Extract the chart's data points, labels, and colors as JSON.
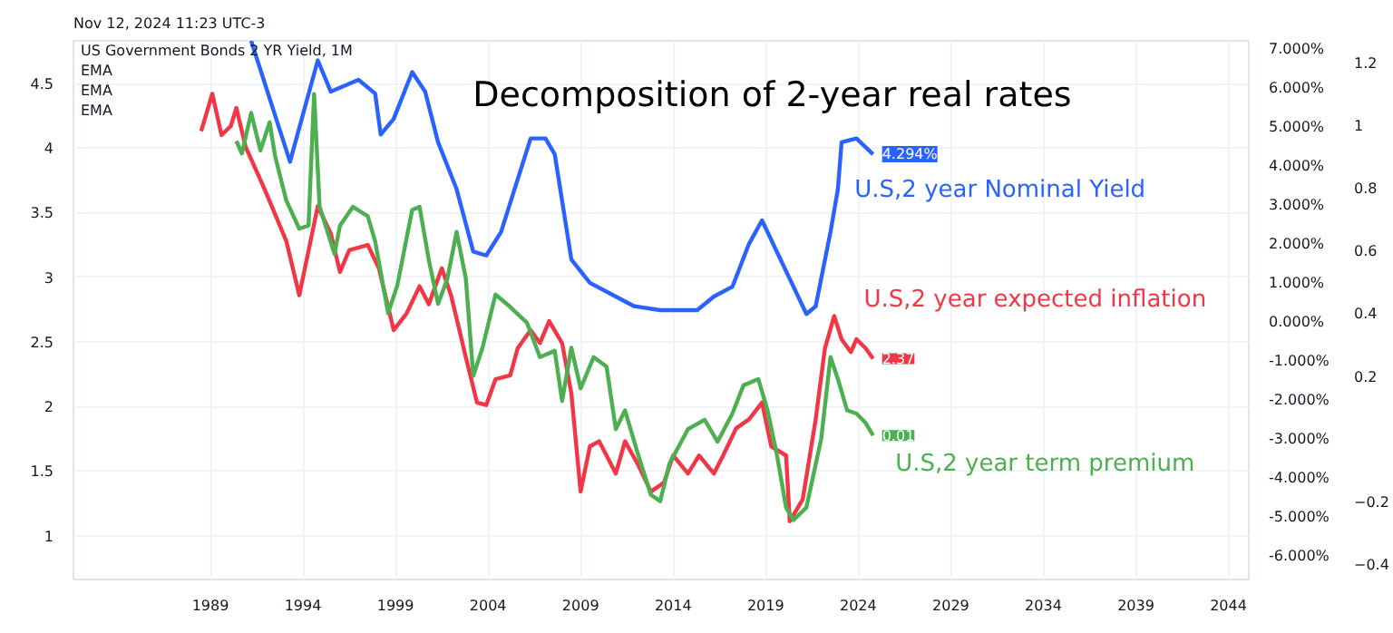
{
  "chart_data": {
    "type": "line",
    "title": "Decomposition of 2-year real rates",
    "annotations": [
      "Nov 12, 2024 11:23 UTC-3",
      "US Government Bonds 2 YR Yield, 1M",
      "EMA",
      "EMA",
      "EMA"
    ],
    "xlim": [
      1981.6,
      2045.1
    ],
    "xticks": [
      1989,
      1994,
      1999,
      2004,
      2009,
      2014,
      2019,
      2024,
      2029,
      2034,
      2039,
      2044
    ],
    "ylim": [
      0.66,
      4.83
    ],
    "yticks": [
      1,
      1.5,
      2,
      2.5,
      3,
      3.5,
      4,
      4.5
    ],
    "y2lim": [
      -6.6,
      7.2
    ],
    "y2ticks": [
      {
        "value": -6,
        "label": "-6.000%"
      },
      {
        "value": -5,
        "label": "-5.000%"
      },
      {
        "value": -4,
        "label": "-4.000%"
      },
      {
        "value": -3,
        "label": "-3.000%"
      },
      {
        "value": -2,
        "label": "-2.000%"
      },
      {
        "value": -1,
        "label": "-1.000%"
      },
      {
        "value": 0,
        "label": "0.000%"
      },
      {
        "value": 1,
        "label": "1.000%"
      },
      {
        "value": 2,
        "label": "2.000%"
      },
      {
        "value": 3,
        "label": "3.000%"
      },
      {
        "value": 4,
        "label": "4.000%"
      },
      {
        "value": 5,
        "label": "5.000%"
      },
      {
        "value": 6,
        "label": "6.000%"
      },
      {
        "value": 7,
        "label": "7.000%"
      }
    ],
    "y3lim": [
      -0.45,
      1.27
    ],
    "y3ticks": [
      -0.4,
      -0.2,
      0.2,
      0.4,
      0.6,
      0.8,
      1,
      1.2
    ],
    "grid": true,
    "legend": "right",
    "marker": "none",
    "line_style": "solid",
    "series": [
      {
        "name": "U.S,2 year Nominal Yield",
        "color": "#2962ff",
        "axis": "y2",
        "x": [
          1991.2,
          1993.3,
          1994.8,
          1995.5,
          1997.0,
          1997.9,
          1998.2,
          1998.9,
          1999.9,
          2000.6,
          2001.3,
          2002.3,
          2003.2,
          2003.9,
          2004.7,
          2005.3,
          2006.3,
          2007.1,
          2007.6,
          2008.5,
          2009.5,
          2010.9,
          2011.9,
          2013.3,
          2015.3,
          2016.2,
          2017.2,
          2018.1,
          2018.8,
          2019.6,
          2020.5,
          2021.2,
          2021.7,
          2022.5,
          2022.9,
          2023.1,
          2023.9,
          2024.8
        ],
        "values": [
          7.2,
          4.1,
          6.7,
          5.9,
          6.2,
          5.85,
          4.8,
          5.2,
          6.4,
          5.9,
          4.6,
          3.4,
          1.8,
          1.7,
          2.3,
          3.2,
          4.7,
          4.7,
          4.3,
          1.6,
          1.0,
          0.65,
          0.4,
          0.3,
          0.3,
          0.65,
          0.9,
          2.0,
          2.6,
          1.8,
          0.9,
          0.2,
          0.4,
          2.3,
          3.4,
          4.6,
          4.7,
          4.294
        ],
        "value_labels": [
          null,
          null,
          null,
          null,
          null,
          null,
          null,
          null,
          null,
          null,
          null,
          null,
          null,
          null,
          null,
          null,
          null,
          null,
          null,
          null,
          null,
          null,
          null,
          null,
          null,
          null,
          null,
          null,
          null,
          null,
          null,
          null,
          null,
          null,
          null,
          null,
          null,
          "4.294%"
        ]
      },
      {
        "name": "U.S,2 year expected inflation",
        "color": "#f23645",
        "axis": "y",
        "x": [
          1988.5,
          1989.1,
          1989.6,
          1990.1,
          1990.4,
          1990.9,
          1991.9,
          1993.1,
          1993.8,
          1994.8,
          1995.5,
          1996.0,
          1996.5,
          1997.5,
          1998.1,
          1998.9,
          1999.6,
          2000.3,
          2000.8,
          2001.5,
          2002.0,
          2002.8,
          2003.4,
          2003.9,
          2004.4,
          2005.2,
          2005.6,
          2006.3,
          2006.8,
          2007.3,
          2008.0,
          2008.5,
          2009.0,
          2009.5,
          2010.0,
          2010.4,
          2010.9,
          2011.4,
          2012.1,
          2012.8,
          2013.5,
          2014.0,
          2014.8,
          2015.4,
          2016.2,
          2016.7,
          2017.4,
          2018.1,
          2018.8,
          2019.3,
          2020.1,
          2020.3,
          2021.0,
          2021.7,
          2022.2,
          2022.7,
          2023.1,
          2023.6,
          2023.9,
          2024.4,
          2024.8
        ],
        "values": [
          4.13,
          4.42,
          4.1,
          4.17,
          4.31,
          4.01,
          3.69,
          3.28,
          2.86,
          3.55,
          3.34,
          3.04,
          3.21,
          3.25,
          3.07,
          2.59,
          2.72,
          2.93,
          2.79,
          3.07,
          2.86,
          2.38,
          2.03,
          2.01,
          2.21,
          2.24,
          2.45,
          2.59,
          2.49,
          2.66,
          2.49,
          2.1,
          1.34,
          1.69,
          1.73,
          1.62,
          1.48,
          1.73,
          1.55,
          1.34,
          1.41,
          1.62,
          1.48,
          1.62,
          1.48,
          1.62,
          1.83,
          1.9,
          2.03,
          1.69,
          1.62,
          1.11,
          1.28,
          1.9,
          2.45,
          2.7,
          2.52,
          2.42,
          2.52,
          2.45,
          2.37
        ],
        "value_labels": [
          null,
          null,
          null,
          null,
          null,
          null,
          null,
          null,
          null,
          null,
          null,
          null,
          null,
          null,
          null,
          null,
          null,
          null,
          null,
          null,
          null,
          null,
          null,
          null,
          null,
          null,
          null,
          null,
          null,
          null,
          null,
          null,
          null,
          null,
          null,
          null,
          null,
          null,
          null,
          null,
          null,
          null,
          null,
          null,
          null,
          null,
          null,
          null,
          null,
          null,
          null,
          null,
          null,
          null,
          null,
          null,
          null,
          null,
          null,
          null,
          "2.37"
        ]
      },
      {
        "name": "U.S,2 year term premium",
        "color": "#4caf50",
        "axis": "y3",
        "x": [
          1990.4,
          1990.7,
          1991.2,
          1991.7,
          1992.2,
          1992.5,
          1993.1,
          1993.8,
          1994.3,
          1994.6,
          1994.9,
          1995.7,
          1996.0,
          1996.7,
          1997.5,
          1997.9,
          1998.6,
          1999.1,
          1999.9,
          2000.3,
          2000.8,
          2001.3,
          2001.8,
          2002.3,
          2002.8,
          2003.2,
          2003.7,
          2004.4,
          2005.2,
          2006.1,
          2006.8,
          2007.6,
          2008.0,
          2008.5,
          2009.0,
          2009.7,
          2010.4,
          2010.9,
          2011.4,
          2012.1,
          2012.8,
          2013.3,
          2013.8,
          2014.8,
          2015.7,
          2016.4,
          2017.2,
          2017.8,
          2018.6,
          2019.1,
          2019.6,
          2020.1,
          2020.5,
          2021.2,
          2022.0,
          2022.5,
          2022.9,
          2023.4,
          2023.9,
          2024.4,
          2024.8
        ],
        "values": [
          0.95,
          0.91,
          1.04,
          0.92,
          1.01,
          0.9,
          0.76,
          0.67,
          0.68,
          1.1,
          0.74,
          0.59,
          0.68,
          0.74,
          0.71,
          0.63,
          0.4,
          0.49,
          0.73,
          0.74,
          0.57,
          0.43,
          0.51,
          0.66,
          0.51,
          0.2,
          0.29,
          0.46,
          0.42,
          0.37,
          0.26,
          0.28,
          0.12,
          0.29,
          0.16,
          0.26,
          0.23,
          0.03,
          0.09,
          -0.05,
          -0.18,
          -0.2,
          -0.08,
          0.03,
          0.06,
          -0.01,
          0.08,
          0.17,
          0.19,
          0.09,
          -0.05,
          -0.22,
          -0.26,
          -0.22,
          0.0,
          0.26,
          0.19,
          0.09,
          0.08,
          0.05,
          0.01
        ],
        "value_labels": [
          null,
          null,
          null,
          null,
          null,
          null,
          null,
          null,
          null,
          null,
          null,
          null,
          null,
          null,
          null,
          null,
          null,
          null,
          null,
          null,
          null,
          null,
          null,
          null,
          null,
          null,
          null,
          null,
          null,
          null,
          null,
          null,
          null,
          null,
          null,
          null,
          null,
          null,
          null,
          null,
          null,
          null,
          null,
          null,
          null,
          null,
          null,
          null,
          null,
          null,
          null,
          null,
          null,
          null,
          null,
          null,
          null,
          null,
          null,
          null,
          "0.01"
        ]
      }
    ]
  }
}
